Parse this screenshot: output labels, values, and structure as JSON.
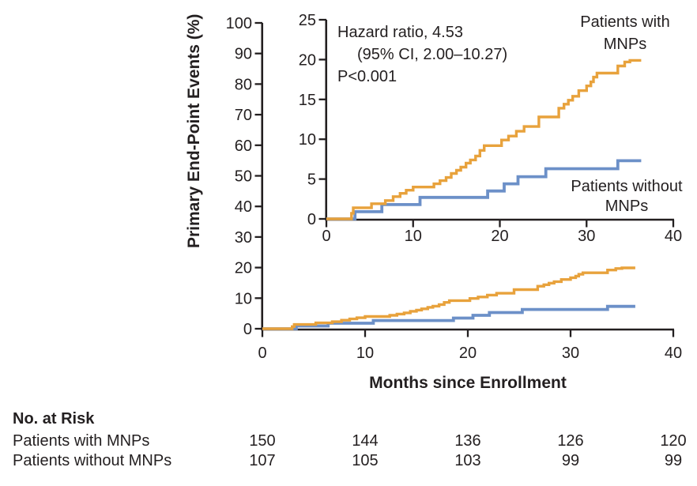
{
  "chart_data": {
    "type": "line",
    "style": "kaplan-meier-cumulative-incidence-steps",
    "title": "",
    "xlabel": "Months since Enrollment",
    "ylabel": "Primary End-Point Events (%)",
    "legend_position": "labels-inside-inset",
    "grid": false,
    "axis_color": "#231F20",
    "main_axis": {
      "xlim": [
        0,
        40
      ],
      "ylim": [
        0,
        100
      ],
      "xticks": [
        0,
        10,
        20,
        30,
        40
      ],
      "yticks": [
        0,
        10,
        20,
        30,
        40,
        50,
        60,
        70,
        80,
        90,
        100
      ]
    },
    "inset_axis": {
      "xlim": [
        0,
        40
      ],
      "ylim": [
        0,
        25
      ],
      "xticks": [
        0,
        10,
        20,
        30,
        40
      ],
      "yticks": [
        0,
        5,
        10,
        15,
        20,
        25
      ]
    },
    "annotation": {
      "hazard_ratio_text": "Hazard ratio, 4.53",
      "ci_text": "(95% CI, 2.00–10.27)",
      "p_value_text": "P<0.001"
    },
    "series": [
      {
        "name": "Patients with MNPs",
        "label_lines": [
          "Patients with",
          "MNPs"
        ],
        "color": "#E8A23C",
        "step_points": [
          [
            0,
            0
          ],
          [
            2.9,
            0.7
          ],
          [
            3.1,
            1.4
          ],
          [
            5.2,
            1.9
          ],
          [
            6.8,
            2.3
          ],
          [
            7.7,
            2.8
          ],
          [
            8.5,
            3.2
          ],
          [
            9.2,
            3.6
          ],
          [
            10.0,
            4.0
          ],
          [
            12.4,
            4.4
          ],
          [
            13.1,
            4.8
          ],
          [
            13.8,
            5.2
          ],
          [
            14.4,
            5.7
          ],
          [
            15.0,
            6.1
          ],
          [
            15.5,
            6.5
          ],
          [
            16.1,
            7.0
          ],
          [
            16.6,
            7.4
          ],
          [
            17.2,
            7.9
          ],
          [
            17.7,
            8.6
          ],
          [
            18.2,
            9.2
          ],
          [
            20.2,
            9.9
          ],
          [
            21.0,
            10.4
          ],
          [
            21.9,
            11.0
          ],
          [
            22.8,
            11.6
          ],
          [
            24.5,
            12.8
          ],
          [
            26.8,
            13.9
          ],
          [
            27.4,
            14.4
          ],
          [
            27.9,
            14.9
          ],
          [
            28.4,
            15.4
          ],
          [
            29.1,
            16.1
          ],
          [
            30.0,
            16.7
          ],
          [
            30.5,
            17.2
          ],
          [
            30.8,
            17.8
          ],
          [
            31.2,
            18.3
          ],
          [
            33.6,
            19.2
          ],
          [
            34.4,
            19.7
          ],
          [
            35.0,
            19.9
          ],
          [
            36.3,
            19.9
          ]
        ]
      },
      {
        "name": "Patients without MNPs",
        "label_lines": [
          "Patients without",
          "MNPs"
        ],
        "color": "#6C90C8",
        "step_points": [
          [
            0,
            0
          ],
          [
            3.3,
            0.9
          ],
          [
            6.4,
            1.8
          ],
          [
            10.8,
            2.7
          ],
          [
            18.6,
            3.5
          ],
          [
            20.5,
            4.4
          ],
          [
            22.1,
            5.3
          ],
          [
            25.3,
            6.3
          ],
          [
            33.6,
            7.3
          ],
          [
            36.3,
            7.3
          ]
        ]
      }
    ],
    "no_at_risk": {
      "title": "No. at Risk",
      "months": [
        0,
        10,
        20,
        30,
        40
      ],
      "rows": [
        {
          "label": "Patients with MNPs",
          "values": [
            150,
            144,
            136,
            126,
            120
          ]
        },
        {
          "label": "Patients without MNPs",
          "values": [
            107,
            105,
            103,
            99,
            99
          ]
        }
      ]
    }
  }
}
